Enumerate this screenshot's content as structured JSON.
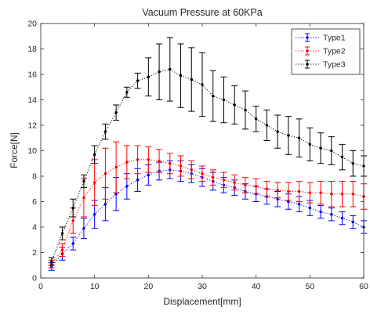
{
  "chart_data": {
    "type": "line",
    "title": "Vacuum Pressure at 60KPa",
    "xlabel": "Displacement[mm]",
    "ylabel": "Force[N]",
    "xlim": [
      0,
      60
    ],
    "ylim": [
      0,
      20
    ],
    "xticks": [
      0,
      10,
      20,
      30,
      40,
      50,
      60
    ],
    "yticks": [
      0,
      2,
      4,
      6,
      8,
      10,
      12,
      14,
      16,
      18,
      20
    ],
    "grid": false,
    "legend_position": "top-right",
    "x": [
      2,
      4,
      6,
      8,
      10,
      12,
      14,
      16,
      18,
      20,
      22,
      24,
      26,
      28,
      30,
      32,
      34,
      36,
      38,
      40,
      42,
      44,
      46,
      48,
      50,
      52,
      54,
      56,
      58,
      60
    ],
    "series": [
      {
        "name": "Type1",
        "color": "#0000ff",
        "values": [
          0.9,
          1.9,
          2.7,
          3.9,
          5.0,
          5.8,
          6.6,
          7.2,
          7.7,
          8.1,
          8.4,
          8.5,
          8.4,
          8.2,
          7.9,
          7.6,
          7.3,
          7.1,
          6.8,
          6.6,
          6.4,
          6.2,
          6.0,
          5.8,
          5.5,
          5.2,
          5.0,
          4.7,
          4.4,
          4.0
        ],
        "errors": [
          0.3,
          0.5,
          0.5,
          0.8,
          1.1,
          1.3,
          1.3,
          1.0,
          0.9,
          0.8,
          0.7,
          0.7,
          0.8,
          0.7,
          0.7,
          0.7,
          0.6,
          0.6,
          0.6,
          0.6,
          0.6,
          0.6,
          0.6,
          0.6,
          0.6,
          0.5,
          0.5,
          0.5,
          0.5,
          0.5
        ]
      },
      {
        "name": "Type2",
        "color": "#ff0000",
        "values": [
          1.1,
          2.2,
          4.5,
          6.3,
          7.5,
          8.2,
          8.7,
          9.1,
          9.3,
          9.3,
          9.2,
          9.0,
          8.8,
          8.5,
          8.2,
          7.9,
          7.7,
          7.5,
          7.3,
          7.2,
          7.0,
          6.9,
          6.8,
          6.8,
          6.7,
          6.7,
          6.6,
          6.6,
          6.6,
          6.4
        ],
        "errors": [
          0.3,
          0.5,
          1.0,
          1.5,
          1.8,
          2.0,
          2.0,
          1.3,
          1.1,
          1.0,
          0.9,
          0.8,
          0.8,
          0.7,
          0.6,
          0.6,
          0.6,
          0.6,
          0.6,
          0.6,
          0.6,
          0.6,
          0.7,
          0.8,
          0.8,
          0.9,
          1.0,
          1.0,
          1.0,
          1.0
        ]
      },
      {
        "name": "Type3",
        "color": "#000000",
        "values": [
          1.3,
          3.5,
          5.5,
          7.6,
          9.7,
          11.5,
          13.0,
          14.6,
          15.5,
          15.8,
          16.2,
          16.4,
          15.9,
          15.6,
          15.2,
          14.3,
          14.0,
          13.6,
          13.2,
          12.5,
          12.0,
          11.5,
          11.2,
          11.0,
          10.5,
          10.2,
          10.0,
          9.5,
          9.0,
          8.8
        ],
        "errors": [
          0.3,
          0.5,
          0.7,
          0.5,
          0.7,
          0.6,
          0.6,
          0.4,
          0.6,
          1.5,
          2.2,
          2.5,
          2.5,
          2.5,
          2.5,
          2.0,
          1.8,
          1.5,
          1.5,
          1.0,
          1.2,
          1.3,
          1.5,
          1.5,
          1.3,
          1.2,
          1.1,
          1.0,
          1.0,
          0.8
        ]
      }
    ]
  }
}
